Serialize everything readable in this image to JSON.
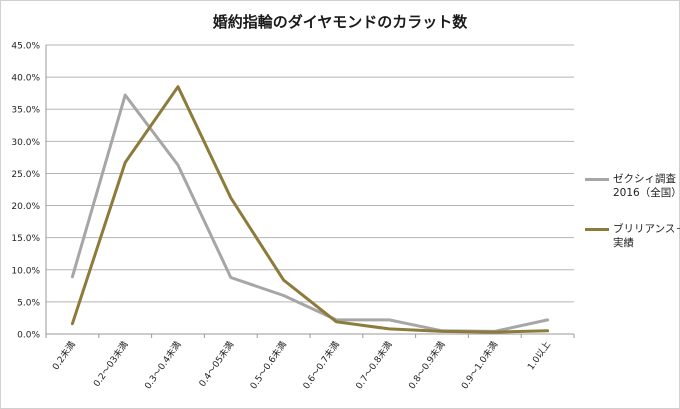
{
  "chart_data": {
    "type": "line",
    "title": "婚約指輪のダイヤモンドのカラット数",
    "categories": [
      "0.2未満",
      "0.2～03未満",
      "0.3～0.4未満",
      "0.4～05未満",
      "0.5～0.6未満",
      "0.6～0.7未満",
      "0.7～0.8未満",
      "0.8～0.9未満",
      "0.9～1.0未満",
      "1.0以上"
    ],
    "ylim": [
      0,
      45
    ],
    "ytick_step": 5,
    "ytick_labels": [
      "0.0%",
      "5.0%",
      "10.0%",
      "15.0%",
      "20.0%",
      "25.0%",
      "30.0%",
      "35.0%",
      "40.0%",
      "45.0%"
    ],
    "grid": true,
    "legend_position": "right",
    "series": [
      {
        "name": "ゼクシィ調査2016（全国）",
        "label_lines": [
          "ゼクシィ調査",
          "2016（全国）"
        ],
        "color": "#a6a6a6",
        "values": [
          8.9,
          37.2,
          26.3,
          8.8,
          6.0,
          2.2,
          2.2,
          0.5,
          0.4,
          2.2
        ]
      },
      {
        "name": "ブリリアンス＋実績",
        "label_lines": [
          "ブリリアンス＋",
          "実績"
        ],
        "color": "#8c7b3a",
        "values": [
          1.6,
          26.7,
          38.5,
          21.2,
          8.4,
          1.9,
          0.8,
          0.4,
          0.3,
          0.5
        ]
      }
    ]
  }
}
